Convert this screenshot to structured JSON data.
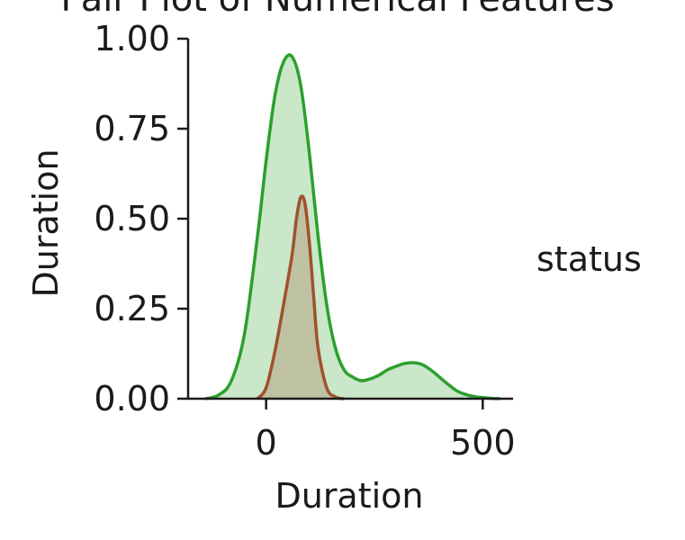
{
  "chart_data": {
    "type": "area",
    "title": "Pair Plot of Numerical Features",
    "xlabel": "Duration",
    "ylabel": "Duration",
    "xlim": [
      -180,
      570
    ],
    "ylim": [
      0,
      1.0
    ],
    "x_ticks": [
      {
        "value": 0,
        "label": "0"
      },
      {
        "value": 500,
        "label": "500"
      }
    ],
    "y_ticks": [
      {
        "value": 0,
        "label": "0.00"
      },
      {
        "value": 0.25,
        "label": "0.25"
      },
      {
        "value": 0.5,
        "label": "0.50"
      },
      {
        "value": 0.75,
        "label": "0.75"
      },
      {
        "value": 1.0,
        "label": "1.00"
      }
    ],
    "legend_title": "status",
    "grid": false,
    "series": [
      {
        "color": "#2ca02c",
        "fill": "#2ca02c",
        "x": [
          -140,
          -110,
          -80,
          -50,
          -20,
          0,
          20,
          40,
          60,
          80,
          100,
          120,
          140,
          160,
          180,
          200,
          220,
          240,
          260,
          280,
          300,
          320,
          340,
          360,
          380,
          400,
          420,
          440,
          460,
          480,
          500,
          520,
          540
        ],
        "y": [
          0.0,
          0.01,
          0.05,
          0.18,
          0.45,
          0.66,
          0.84,
          0.935,
          0.95,
          0.87,
          0.68,
          0.45,
          0.26,
          0.14,
          0.08,
          0.06,
          0.05,
          0.055,
          0.065,
          0.08,
          0.09,
          0.098,
          0.1,
          0.095,
          0.08,
          0.06,
          0.04,
          0.022,
          0.012,
          0.006,
          0.003,
          0.001,
          0.0
        ]
      },
      {
        "color": "#a0522d",
        "fill": "#a0522d",
        "x": [
          -20,
          0,
          20,
          40,
          60,
          70,
          80,
          90,
          100,
          110,
          120,
          140,
          160,
          180
        ],
        "y": [
          0.0,
          0.03,
          0.13,
          0.26,
          0.4,
          0.5,
          0.56,
          0.54,
          0.43,
          0.28,
          0.14,
          0.03,
          0.005,
          0.0
        ]
      }
    ]
  }
}
